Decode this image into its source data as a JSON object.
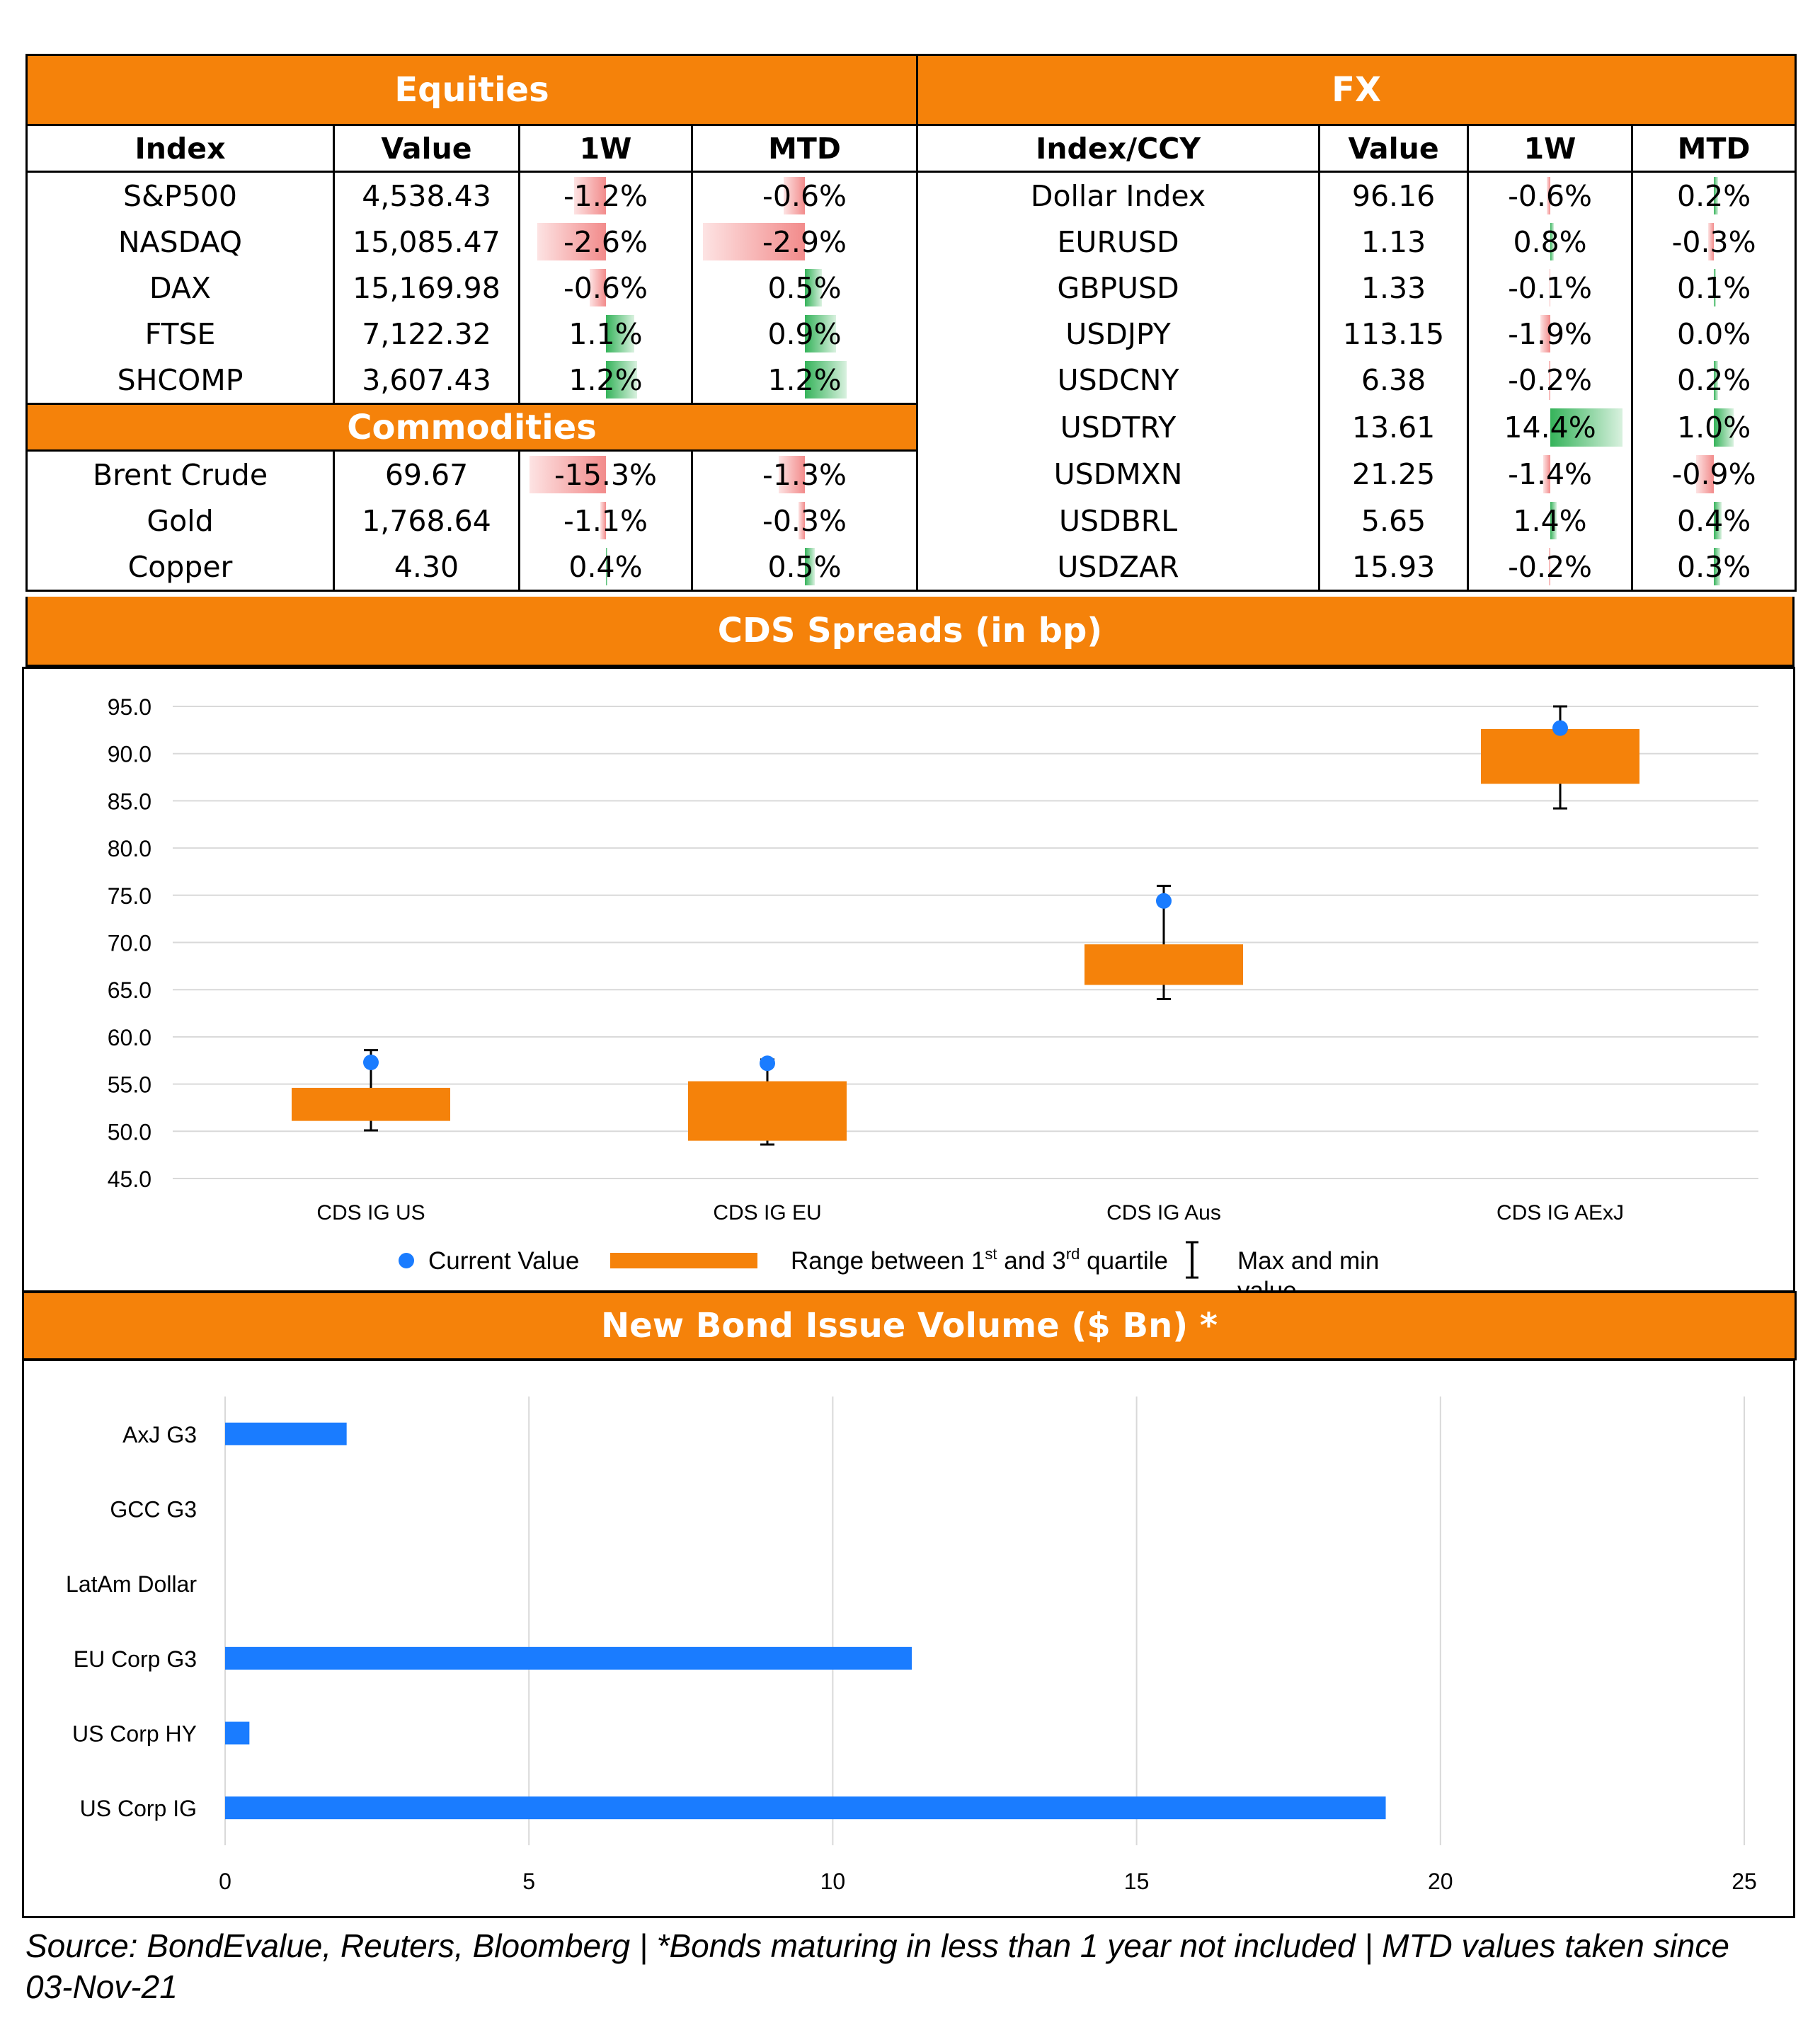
{
  "equities": {
    "title": "Equities",
    "headers": [
      "Index",
      "Value",
      "1W",
      "MTD"
    ],
    "rows": [
      {
        "name": "S&P500",
        "value": "4,538.43",
        "w1": "-1.2%",
        "w1_num": -1.2,
        "mtd": "-0.6%",
        "mtd_num": -0.6
      },
      {
        "name": "NASDAQ",
        "value": "15,085.47",
        "w1": "-2.6%",
        "w1_num": -2.6,
        "mtd": "-2.9%",
        "mtd_num": -2.9
      },
      {
        "name": "DAX",
        "value": "15,169.98",
        "w1": "-0.6%",
        "w1_num": -0.6,
        "mtd": "0.5%",
        "mtd_num": 0.5
      },
      {
        "name": "FTSE",
        "value": "7,122.32",
        "w1": "1.1%",
        "w1_num": 1.1,
        "mtd": "0.9%",
        "mtd_num": 0.9
      },
      {
        "name": "SHCOMP",
        "value": "3,607.43",
        "w1": "1.2%",
        "w1_num": 1.2,
        "mtd": "1.2%",
        "mtd_num": 1.2
      }
    ]
  },
  "commodities": {
    "title": "Commodities",
    "rows": [
      {
        "name": "Brent Crude",
        "value": "69.67",
        "w1": "-15.3%",
        "w1_num": -15.3,
        "mtd": "-1.3%",
        "mtd_num": -1.3
      },
      {
        "name": "Gold",
        "value": "1,768.64",
        "w1": "-1.1%",
        "w1_num": -1.1,
        "mtd": "-0.3%",
        "mtd_num": -0.3
      },
      {
        "name": "Copper",
        "value": "4.30",
        "w1": "0.4%",
        "w1_num": 0.4,
        "mtd": "0.5%",
        "mtd_num": 0.5
      }
    ]
  },
  "fx": {
    "title": "FX",
    "headers": [
      "Index/CCY",
      "Value",
      "1W",
      "MTD"
    ],
    "rows": [
      {
        "name": "Dollar Index",
        "value": "96.16",
        "w1": "-0.6%",
        "w1_num": -0.6,
        "mtd": "0.2%",
        "mtd_num": 0.2
      },
      {
        "name": "EURUSD",
        "value": "1.13",
        "w1": "0.8%",
        "w1_num": 0.8,
        "mtd": "-0.3%",
        "mtd_num": -0.3
      },
      {
        "name": "GBPUSD",
        "value": "1.33",
        "w1": "-0.1%",
        "w1_num": -0.1,
        "mtd": "0.1%",
        "mtd_num": 0.1
      },
      {
        "name": "USDJPY",
        "value": "113.15",
        "w1": "-1.9%",
        "w1_num": -1.9,
        "mtd": "0.0%",
        "mtd_num": 0.0
      },
      {
        "name": "USDCNY",
        "value": "6.38",
        "w1": "-0.2%",
        "w1_num": -0.2,
        "mtd": "0.2%",
        "mtd_num": 0.2
      },
      {
        "name": "USDTRY",
        "value": "13.61",
        "w1": "14.4%",
        "w1_num": 14.4,
        "mtd": "1.0%",
        "mtd_num": 1.0
      },
      {
        "name": "USDMXN",
        "value": "21.25",
        "w1": "-1.4%",
        "w1_num": -1.4,
        "mtd": "-0.9%",
        "mtd_num": -0.9
      },
      {
        "name": "USDBRL",
        "value": "5.65",
        "w1": "1.4%",
        "w1_num": 1.4,
        "mtd": "0.4%",
        "mtd_num": 0.4
      },
      {
        "name": "USDZAR",
        "value": "15.93",
        "w1": "-0.2%",
        "w1_num": -0.2,
        "mtd": "0.3%",
        "mtd_num": 0.3
      }
    ]
  },
  "cds_title": "CDS Spreads (in bp)",
  "bond_title": "New Bond Issue Volume ($ Bn) *",
  "source_note": "Source: BondEvalue, Reuters, Bloomberg | *Bonds maturing in less than 1 year not included | MTD values taken since 03-Nov-21",
  "colors": {
    "orange": "#f5820a",
    "blue": "#1a7cff",
    "neg": "#f28b8b",
    "pos": "#35b35a"
  },
  "chart_data": [
    {
      "type": "box",
      "title": "CDS Spreads (in bp)",
      "categories": [
        "CDS IG US",
        "CDS IG EU",
        "CDS IG Aus",
        "CDS IG AExJ"
      ],
      "ylim": [
        45,
        95
      ],
      "yticks": [
        "45.0",
        "50.0",
        "55.0",
        "60.0",
        "65.0",
        "70.0",
        "75.0",
        "80.0",
        "85.0",
        "90.0",
        "95.0"
      ],
      "series": [
        {
          "name": "Current Value",
          "values": [
            57.3,
            57.2,
            74.4,
            92.7
          ]
        },
        {
          "name": "Range between 1st and 3rd quartile",
          "q1": [
            51.1,
            49.0,
            65.5,
            86.8
          ],
          "q3": [
            54.6,
            55.3,
            69.8,
            92.6
          ]
        },
        {
          "name": "Max and min value",
          "min": [
            50.1,
            48.6,
            64.0,
            84.2
          ],
          "max": [
            58.6,
            57.6,
            76.0,
            95.0
          ]
        }
      ],
      "legend": {
        "current": "Current Value",
        "range_pre": "Range between 1",
        "range_sup1": "st",
        "range_mid": " and 3",
        "range_sup2": "rd",
        "range_post": " quartile",
        "maxmin_1": "Max and min",
        "maxmin_2": "value"
      },
      "legend_position": "bottom"
    },
    {
      "type": "bar",
      "orientation": "horizontal",
      "title": "New Bond Issue Volume ($ Bn) *",
      "categories": [
        "AxJ G3",
        "GCC G3",
        "LatAm Dollar",
        "EU Corp G3",
        "US Corp HY",
        "US Corp IG"
      ],
      "values": [
        2.0,
        0,
        0,
        11.3,
        0.4,
        19.1
      ],
      "xlim": [
        0,
        25
      ],
      "xticks": [
        "0",
        "5",
        "10",
        "15",
        "20",
        "25"
      ],
      "grid": true
    }
  ]
}
